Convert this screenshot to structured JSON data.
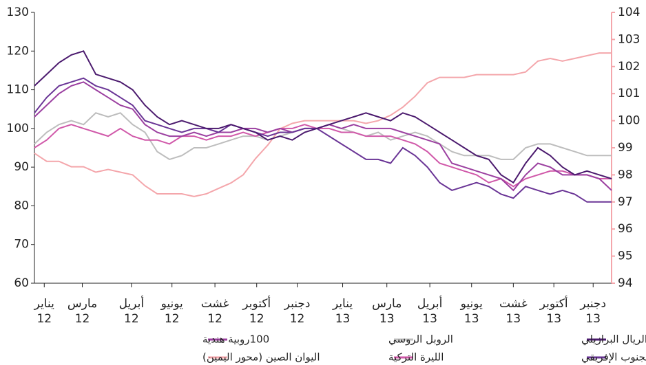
{
  "chart_data": {
    "type": "line",
    "x": [
      0,
      1,
      2,
      3,
      4,
      5,
      6,
      7,
      8,
      9,
      10,
      11,
      12,
      13,
      14,
      15,
      16,
      17,
      18,
      19,
      20,
      21,
      22,
      23,
      24,
      25,
      26,
      27,
      28,
      29,
      30,
      31,
      32,
      33,
      34,
      35,
      36,
      37,
      38,
      39,
      40,
      41,
      42,
      43,
      44,
      45,
      46,
      47
    ],
    "xlim": [
      0,
      47
    ],
    "xticks": [
      {
        "value": 0.8,
        "label": "يناير\n12"
      },
      {
        "value": 3.9,
        "label": "مارس\n12"
      },
      {
        "value": 7.9,
        "label": "أبريل\n12"
      },
      {
        "value": 11.2,
        "label": "يونيو\n12"
      },
      {
        "value": 14.7,
        "label": "غشت\n12"
      },
      {
        "value": 18.1,
        "label": "أكتوبر\n12"
      },
      {
        "value": 21.4,
        "label": "دجنبر\n12"
      },
      {
        "value": 25.1,
        "label": "يناير\n13"
      },
      {
        "value": 28.7,
        "label": "مارس\n13"
      },
      {
        "value": 32.2,
        "label": "أبريل\n13"
      },
      {
        "value": 35.6,
        "label": "يونيو\n13"
      },
      {
        "value": 39.0,
        "label": "غشت\n13"
      },
      {
        "value": 42.3,
        "label": "أكتوبر\n13"
      },
      {
        "value": 45.5,
        "label": "دجنبر\n13"
      }
    ],
    "ylim": [
      60,
      130
    ],
    "yticks": [
      60,
      70,
      80,
      90,
      100,
      110,
      120,
      130
    ],
    "y2lim": [
      94,
      104
    ],
    "y2ticks": [
      94,
      95,
      96,
      97,
      98,
      99,
      100,
      101,
      102,
      103,
      104
    ],
    "y2color": "#f4a6ab",
    "series": [
      {
        "name": "الريال البرازيلي",
        "color": "#4b1a6e",
        "values": [
          111,
          114,
          117,
          119,
          120,
          114,
          113,
          112,
          110,
          106,
          103,
          101,
          102,
          101,
          100,
          100,
          101,
          100,
          99,
          97,
          98,
          97,
          99,
          100,
          101,
          102,
          103,
          104,
          103,
          102,
          104,
          103,
          101,
          99,
          97,
          95,
          93,
          92,
          88,
          86,
          91,
          95,
          93,
          90,
          88,
          89,
          88,
          87
        ]
      },
      {
        "name": "الراند الجنوب الإفريقي",
        "color": "#6a3596",
        "values": [
          104,
          108,
          111,
          112,
          113,
          111,
          110,
          108,
          106,
          102,
          101,
          100,
          99,
          100,
          100,
          99,
          101,
          100,
          99,
          98,
          99,
          99,
          100,
          100,
          98,
          96,
          94,
          92,
          92,
          91,
          95,
          93,
          90,
          86,
          84,
          85,
          86,
          85,
          83,
          82,
          85,
          84,
          83,
          84,
          83,
          81,
          81,
          81
        ]
      },
      {
        "name": "الروبل الروسي",
        "color": "#bdbdbd",
        "values": [
          96,
          99,
          101,
          102,
          101,
          104,
          103,
          104,
          101,
          99,
          94,
          92,
          93,
          95,
          95,
          96,
          97,
          98,
          98,
          97,
          98,
          99,
          100,
          100,
          101,
          100,
          99,
          98,
          99,
          97,
          98,
          99,
          98,
          96,
          94,
          93,
          93,
          93,
          92,
          92,
          95,
          96,
          96,
          95,
          94,
          93,
          93,
          93
        ]
      },
      {
        "name": "الليرة التركية",
        "color": "#d058a9",
        "values": [
          95,
          97,
          100,
          101,
          100,
          99,
          98,
          100,
          98,
          97,
          97,
          96,
          98,
          98,
          97,
          98,
          98,
          99,
          98,
          99,
          100,
          100,
          101,
          100,
          100,
          99,
          99,
          98,
          98,
          98,
          97,
          96,
          94,
          91,
          90,
          89,
          88,
          86,
          87,
          85,
          87,
          88,
          89,
          89,
          88,
          88,
          87,
          87
        ]
      },
      {
        "name": "100روبية هندية",
        "color": "#9b3fa0",
        "values": [
          103,
          106,
          109,
          111,
          112,
          110,
          108,
          106,
          105,
          101,
          99,
          98,
          98,
          99,
          98,
          99,
          99,
          100,
          100,
          99,
          100,
          99,
          100,
          100,
          101,
          100,
          101,
          100,
          100,
          100,
          99,
          98,
          97,
          96,
          91,
          90,
          89,
          88,
          87,
          84,
          88,
          91,
          90,
          88,
          88,
          88,
          87,
          84
        ]
      },
      {
        "name": "اليوان الصين (محور اليمين)",
        "color": "#f4a6ab",
        "axis": "y2",
        "values": [
          98.8,
          98.5,
          98.5,
          98.3,
          98.3,
          98.1,
          98.2,
          98.1,
          98.0,
          97.6,
          97.3,
          97.3,
          97.3,
          97.2,
          97.3,
          97.5,
          97.7,
          98.0,
          98.6,
          99.1,
          99.7,
          99.9,
          100.0,
          100.0,
          100.0,
          100.0,
          100.0,
          99.9,
          100.0,
          100.2,
          100.5,
          100.9,
          101.4,
          101.6,
          101.6,
          101.6,
          101.7,
          101.7,
          101.7,
          101.7,
          101.8,
          102.2,
          102.3,
          102.2,
          102.3,
          102.4,
          102.5,
          102.5
        ]
      }
    ]
  }
}
